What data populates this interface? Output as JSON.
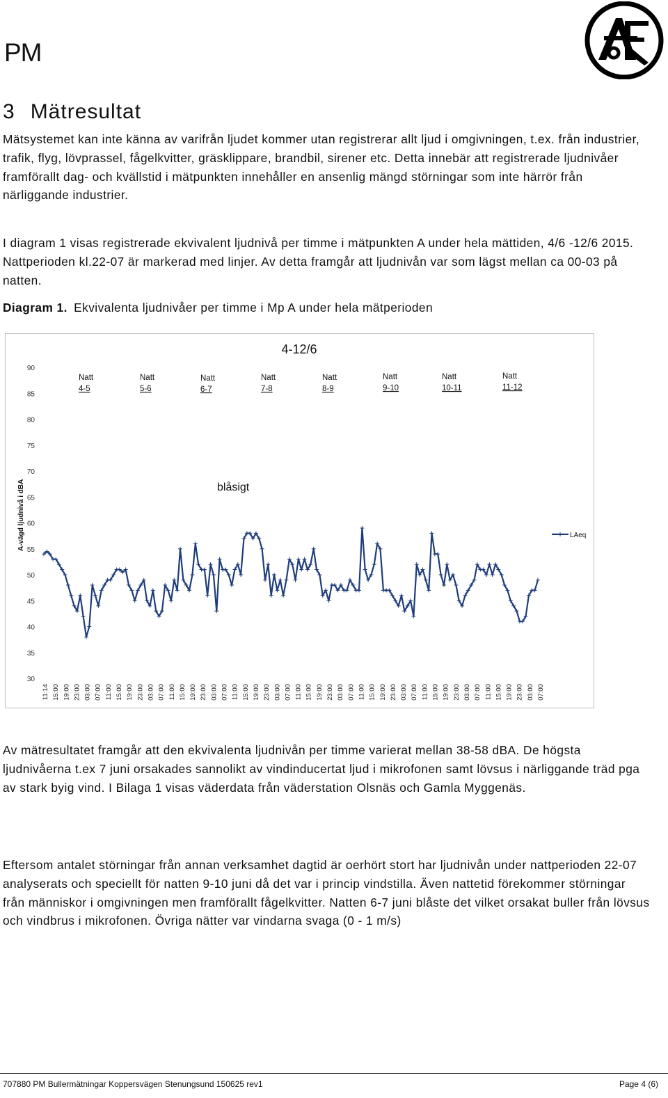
{
  "header": {
    "doc_code": "PM",
    "logo_icon": "af-logo-icon"
  },
  "section": {
    "number": "3",
    "title": "Mätresultat"
  },
  "paragraphs": {
    "p1": "Mätsystemet kan inte känna av varifrån ljudet kommer utan registrerar allt ljud i omgivningen, t.ex. från industrier, trafik, flyg, lövprassel, fågelkvitter, gräsklippare, brandbil, sirener etc. Detta innebär att registrerade ljudnivåer framförallt dag- och kvällstid i mätpunkten innehåller en ansenlig mängd störningar som inte härrör från närliggande industrier.",
    "p2": "I diagram 1 visas registrerade ekvivalent ljudnivå per timme i mätpunkten A under hela mättiden, 4/6 -12/6 2015. Nattperioden kl.22-07 är markerad med linjer. Av detta framgår att ljudnivån var som lägst mellan ca 00-03 på natten.",
    "p3": "Av mätresultatet framgår att den ekvivalenta ljudnivån per timme varierat mellan 38-58 dBA. De högsta ljudnivåerna t.ex 7 juni orsakades sannolikt av vindinducertat ljud i mikrofonen samt lövsus i närliggande träd pga av stark byig vind. I Bilaga 1 visas väderdata från väderstation Olsnäs och Gamla Myggenäs.",
    "p4": "Eftersom antalet störningar från annan verksamhet dagtid är oerhört stort har ljudnivån under nattperioden 22-07 analyserats och speciellt för natten 9-10 juni då det var i princip vindstilla. Även nattetid förekommer störningar från människor i omgivningen men framförallt fågelkvitter. Natten 6-7 juni blåste det vilket orsakat buller från lövsus och vindbrus i mikrofonen. Övriga nätter var vindarna svaga (0 - 1 m/s)"
  },
  "diagram_caption": {
    "label": "Diagram 1.",
    "text": "Ekvivalenta ljudnivåer per timme i Mp A under hela mätperioden"
  },
  "chart_data": {
    "type": "line",
    "title": "4-12/6",
    "ylabel": "A-vägd ljudnivå i dBA",
    "ylim": [
      30,
      90
    ],
    "yticks": [
      30,
      35,
      40,
      45,
      50,
      55,
      60,
      65,
      70,
      75,
      80,
      85,
      90
    ],
    "x_tick_labels": [
      "11:14",
      "15:00",
      "19:00",
      "23:00",
      "03:00",
      "07:00",
      "11:00",
      "15:00",
      "19:00",
      "23:00",
      "03:00",
      "07:00",
      "11:00",
      "15:00",
      "19:00",
      "23:00",
      "03:00",
      "07:00",
      "11:00",
      "15:00",
      "19:00",
      "23:00",
      "03:00",
      "07:00",
      "11:00",
      "15:00",
      "19:00",
      "23:00",
      "03:00",
      "07:00",
      "11:00",
      "15:00",
      "19:00",
      "23:00",
      "03:00",
      "07:00",
      "11:00",
      "15:00",
      "19:00",
      "23:00",
      "03:00",
      "07:00",
      "11:00",
      "15:00",
      "19:00",
      "23:00",
      "03:00",
      "07:00"
    ],
    "night_labels": [
      {
        "line1": "Natt",
        "line2": "4-5"
      },
      {
        "line1": "Natt",
        "line2": "5-6"
      },
      {
        "line1": "Natt",
        "line2": "6-7"
      },
      {
        "line1": "Natt",
        "line2": "7-8"
      },
      {
        "line1": "Natt",
        "line2": "8-9"
      },
      {
        "line1": "Natt",
        "line2": "9-10"
      },
      {
        "line1": "Natt",
        "line2": "10-11"
      },
      {
        "line1": "Natt",
        "line2": "11-12"
      }
    ],
    "annotation": "blåsigt",
    "series": [
      {
        "name": "LAeq",
        "color": "#1f3d7a",
        "values": [
          54,
          54.5,
          54,
          53,
          53,
          52,
          51,
          50,
          48,
          46,
          44,
          43,
          46,
          42,
          38,
          40,
          48,
          46,
          44,
          47,
          48,
          49,
          49,
          50,
          51,
          51,
          50.5,
          51,
          48,
          47,
          45,
          47,
          48,
          49,
          45,
          44,
          47,
          43,
          42,
          43,
          48,
          47,
          45,
          49,
          47,
          55,
          49,
          48,
          47,
          50,
          56,
          52,
          51,
          51,
          46,
          52,
          50,
          43,
          53,
          51,
          51,
          50,
          48,
          51,
          52,
          50,
          57,
          58,
          58,
          57,
          58,
          57,
          55,
          49,
          52,
          46,
          50,
          47,
          49,
          46,
          49,
          53,
          52,
          49,
          53,
          51,
          53,
          51,
          52,
          55,
          51,
          50,
          46,
          47,
          45,
          48,
          48,
          47,
          48,
          47,
          47,
          49,
          48,
          47,
          47,
          59,
          51,
          49,
          50,
          52,
          56,
          55,
          47,
          47,
          47,
          46,
          45,
          44,
          46,
          43,
          44,
          45,
          42,
          52,
          50,
          51,
          49,
          47,
          58,
          54,
          54,
          50,
          48,
          52,
          49,
          50,
          48,
          45,
          44,
          46,
          47,
          48,
          49,
          52,
          51,
          51,
          50,
          52,
          50,
          52,
          51,
          50,
          48,
          47,
          45,
          44,
          43,
          41,
          41,
          42,
          46,
          47,
          47,
          49
        ]
      }
    ]
  },
  "footer": {
    "left": "707880 PM Bullermätningar Koppersvägen Stenungsund 150625 rev1",
    "right": "Page 4 (6)"
  }
}
